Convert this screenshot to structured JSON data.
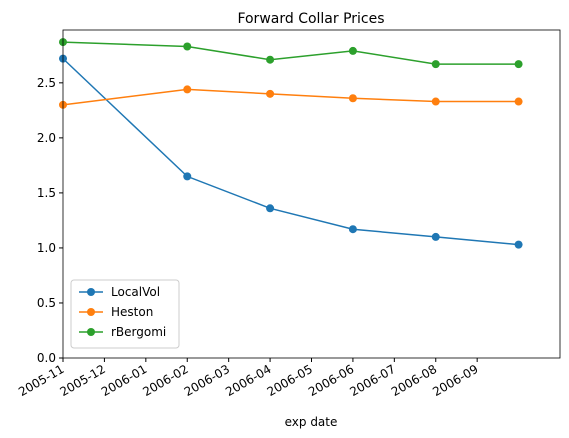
{
  "chart_data": {
    "type": "line",
    "title": "Forward Collar Prices",
    "x_label": "exp date",
    "x": [
      "2005-11",
      "2006-02",
      "2006-04",
      "2006-06",
      "2006-08",
      "2006-10"
    ],
    "series": [
      {
        "name": "LocalVol",
        "color": "#1f77b4",
        "values": [
          2.72,
          1.65,
          1.36,
          1.17,
          1.1,
          1.03
        ]
      },
      {
        "name": "Heston",
        "color": "#ff7f0e",
        "values": [
          2.3,
          2.44,
          2.4,
          2.36,
          2.33,
          2.33
        ]
      },
      {
        "name": "rBergomi",
        "color": "#2ca02c",
        "values": [
          2.87,
          2.83,
          2.71,
          2.79,
          2.67,
          2.67
        ]
      }
    ],
    "xlim": [
      "2005-11",
      "2006-11"
    ],
    "xticks": [
      "2005-11",
      "2005-12",
      "2006-01",
      "2006-02",
      "2006-03",
      "2006-04",
      "2006-05",
      "2006-06",
      "2006-07",
      "2006-08",
      "2006-09"
    ],
    "ylim": [
      0,
      2.98
    ],
    "yticks": [
      {
        "value": 0,
        "label": "0.0"
      },
      0.5,
      {
        "value": 1,
        "label": "1.0"
      },
      1.5,
      {
        "value": 2,
        "label": "2.0"
      },
      2.5
    ],
    "legend": "lower left",
    "grid": false
  }
}
